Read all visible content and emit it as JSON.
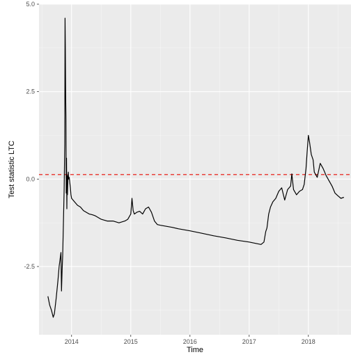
{
  "chart_data": {
    "type": "line",
    "title": "",
    "xlabel": "Time",
    "ylabel": "Test statistic LTC",
    "xlim": [
      2013.45,
      2018.72
    ],
    "ylim": [
      -4.45,
      5.0
    ],
    "x_ticks": [
      2014,
      2015,
      2016,
      2017,
      2018
    ],
    "x_tick_labels": [
      "2014",
      "2015",
      "2016",
      "2017",
      "2018"
    ],
    "y_ticks": [
      -2.5,
      0.0,
      2.5,
      5.0
    ],
    "y_tick_labels": [
      "-2.5",
      "0.0",
      "2.5",
      "5.0"
    ],
    "grid": true,
    "legend": "none",
    "reference_line": {
      "y": 0.13,
      "style": "dashed",
      "color": "#e8302a"
    },
    "series": [
      {
        "color": "#000000",
        "x": [
          2013.6,
          2013.63,
          2013.66,
          2013.69,
          2013.71,
          2013.74,
          2013.77,
          2013.79,
          2013.82,
          2013.83,
          2013.84,
          2013.85,
          2013.86,
          2013.875,
          2013.885,
          2013.89,
          2013.895,
          2013.9,
          2013.905,
          2013.91,
          2013.915,
          2013.92,
          2013.925,
          2013.93,
          2013.94,
          2013.945,
          2013.95,
          2013.96,
          2013.97,
          2013.98,
          2013.99,
          2014.0,
          2014.05,
          2014.1,
          2014.15,
          2014.2,
          2014.25,
          2014.3,
          2014.35,
          2014.4,
          2014.5,
          2014.6,
          2014.7,
          2014.8,
          2014.9,
          2014.95,
          2015.0,
          2015.02,
          2015.04,
          2015.06,
          2015.1,
          2015.15,
          2015.2,
          2015.25,
          2015.3,
          2015.35,
          2015.4,
          2015.45,
          2015.5,
          2015.6,
          2015.7,
          2015.8,
          2015.9,
          2016.0,
          2016.2,
          2016.4,
          2016.6,
          2016.8,
          2017.0,
          2017.2,
          2017.25,
          2017.28,
          2017.3,
          2017.33,
          2017.36,
          2017.4,
          2017.45,
          2017.5,
          2017.55,
          2017.6,
          2017.65,
          2017.7,
          2017.72,
          2017.75,
          2017.8,
          2017.85,
          2017.9,
          2017.93,
          2017.96,
          2017.98,
          2018.0,
          2018.02,
          2018.05,
          2018.08,
          2018.1,
          2018.15,
          2018.2,
          2018.25,
          2018.3,
          2018.35,
          2018.4,
          2018.45,
          2018.5,
          2018.55,
          2018.6
        ],
        "y": [
          -3.35,
          -3.6,
          -3.75,
          -3.95,
          -3.85,
          -3.4,
          -2.9,
          -2.5,
          -2.1,
          -3.2,
          -2.6,
          -2.2,
          -1.4,
          -0.3,
          1.0,
          4.6,
          3.8,
          2.4,
          1.7,
          -0.4,
          0.6,
          -0.85,
          0.1,
          -0.45,
          0.1,
          0.2,
          0.0,
          0.05,
          -0.1,
          -0.25,
          -0.45,
          -0.55,
          -0.65,
          -0.75,
          -0.8,
          -0.9,
          -0.95,
          -1.0,
          -1.02,
          -1.05,
          -1.15,
          -1.2,
          -1.2,
          -1.25,
          -1.2,
          -1.15,
          -1.0,
          -0.55,
          -0.9,
          -1.0,
          -0.95,
          -0.92,
          -1.0,
          -0.85,
          -0.8,
          -0.95,
          -1.2,
          -1.3,
          -1.32,
          -1.35,
          -1.38,
          -1.42,
          -1.45,
          -1.48,
          -1.55,
          -1.62,
          -1.68,
          -1.75,
          -1.8,
          -1.87,
          -1.8,
          -1.5,
          -1.4,
          -1.0,
          -0.8,
          -0.65,
          -0.55,
          -0.35,
          -0.25,
          -0.6,
          -0.3,
          -0.2,
          0.15,
          -0.3,
          -0.45,
          -0.35,
          -0.3,
          -0.15,
          0.3,
          0.8,
          1.25,
          1.05,
          0.7,
          0.55,
          0.2,
          0.05,
          0.45,
          0.3,
          0.1,
          -0.05,
          -0.2,
          -0.4,
          -0.48,
          -0.55,
          -0.52
        ]
      }
    ]
  }
}
